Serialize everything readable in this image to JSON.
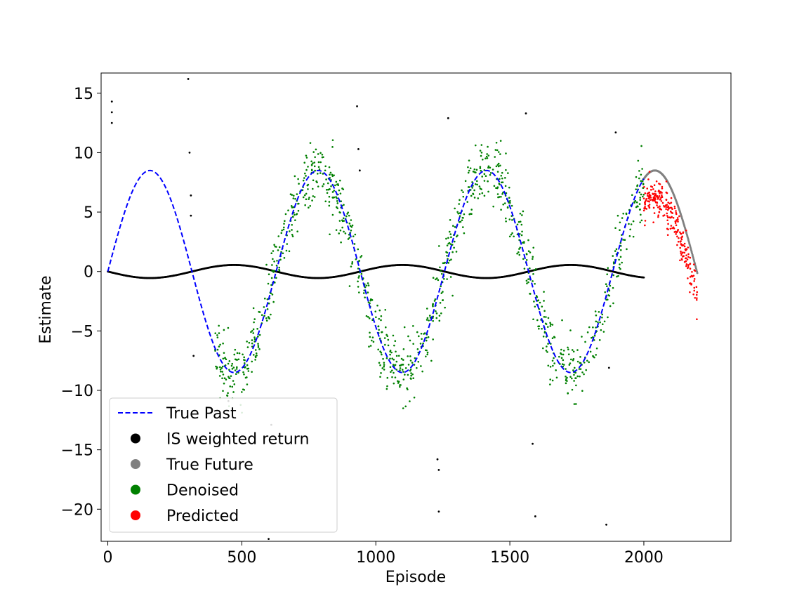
{
  "chart_data": {
    "type": "scatter",
    "title": "",
    "xlabel": "Episode",
    "ylabel": "Estimate",
    "xlim": [
      -25,
      2325
    ],
    "ylim": [
      -22.7,
      16.7
    ],
    "xticks": [
      0,
      500,
      1000,
      1500,
      2000
    ],
    "xtick_labels": [
      "0",
      "500",
      "1000",
      "1500",
      "2000"
    ],
    "yticks": [
      15,
      10,
      5,
      0,
      -5,
      -10,
      -15,
      -20
    ],
    "ytick_labels": [
      "15",
      "10",
      "5",
      "0",
      "−5",
      "−10",
      "−15",
      "−20"
    ],
    "grid": false,
    "legend_position": "lower-left",
    "legend": [
      {
        "label": "True Past",
        "style": "dashed-line",
        "color": "#0000ff"
      },
      {
        "label": "IS weighted return",
        "style": "marker",
        "color": "#000000"
      },
      {
        "label": "True Future",
        "style": "marker",
        "color": "#808080"
      },
      {
        "label": "Denoised",
        "style": "marker",
        "color": "#008000"
      },
      {
        "label": "Predicted",
        "style": "marker",
        "color": "#ff0000"
      }
    ],
    "series": [
      {
        "name": "True Past",
        "kind": "line",
        "color": "#0000ff",
        "function": "8.5*sin(2*pi*x/628)",
        "x_range": [
          0,
          2000
        ]
      },
      {
        "name": "IS weighted return",
        "kind": "scatter",
        "color": "#000000",
        "smooth_component": "-0.55*sin(2*pi*x/628)",
        "x_range": [
          0,
          2000
        ],
        "outliers": [
          [
            15,
            14.3
          ],
          [
            15,
            13.4
          ],
          [
            15,
            12.5
          ],
          [
            300,
            16.2
          ],
          [
            305,
            10.0
          ],
          [
            310,
            6.4
          ],
          [
            310,
            4.7
          ],
          [
            320,
            -7.1
          ],
          [
            450,
            -10.9
          ],
          [
            600,
            -22.5
          ],
          [
            610,
            -12.9
          ],
          [
            930,
            13.9
          ],
          [
            935,
            10.3
          ],
          [
            940,
            8.5
          ],
          [
            1230,
            -15.8
          ],
          [
            1235,
            -16.7
          ],
          [
            1235,
            -20.2
          ],
          [
            1270,
            12.9
          ],
          [
            1560,
            13.3
          ],
          [
            1585,
            -14.5
          ],
          [
            1595,
            -20.6
          ],
          [
            1860,
            -21.3
          ],
          [
            1870,
            -8.1
          ],
          [
            1895,
            11.7
          ]
        ]
      },
      {
        "name": "True Future",
        "kind": "scatter",
        "color": "#808080",
        "function": "8.5*sin(2*pi*x/628)",
        "x_range": [
          2000,
          2200
        ]
      },
      {
        "name": "Denoised",
        "kind": "scatter",
        "color": "#008000",
        "function": "8.5*sin(2*pi*x/628) + noise(sd=1.4)",
        "x_range": [
          400,
          2000
        ]
      },
      {
        "name": "Predicted",
        "kind": "scatter",
        "color": "#ff0000",
        "function": "8.5*sin(2*pi*x/628) - 2.2 + noise(sd=0.8)",
        "x_range": [
          2000,
          2200
        ]
      }
    ]
  }
}
